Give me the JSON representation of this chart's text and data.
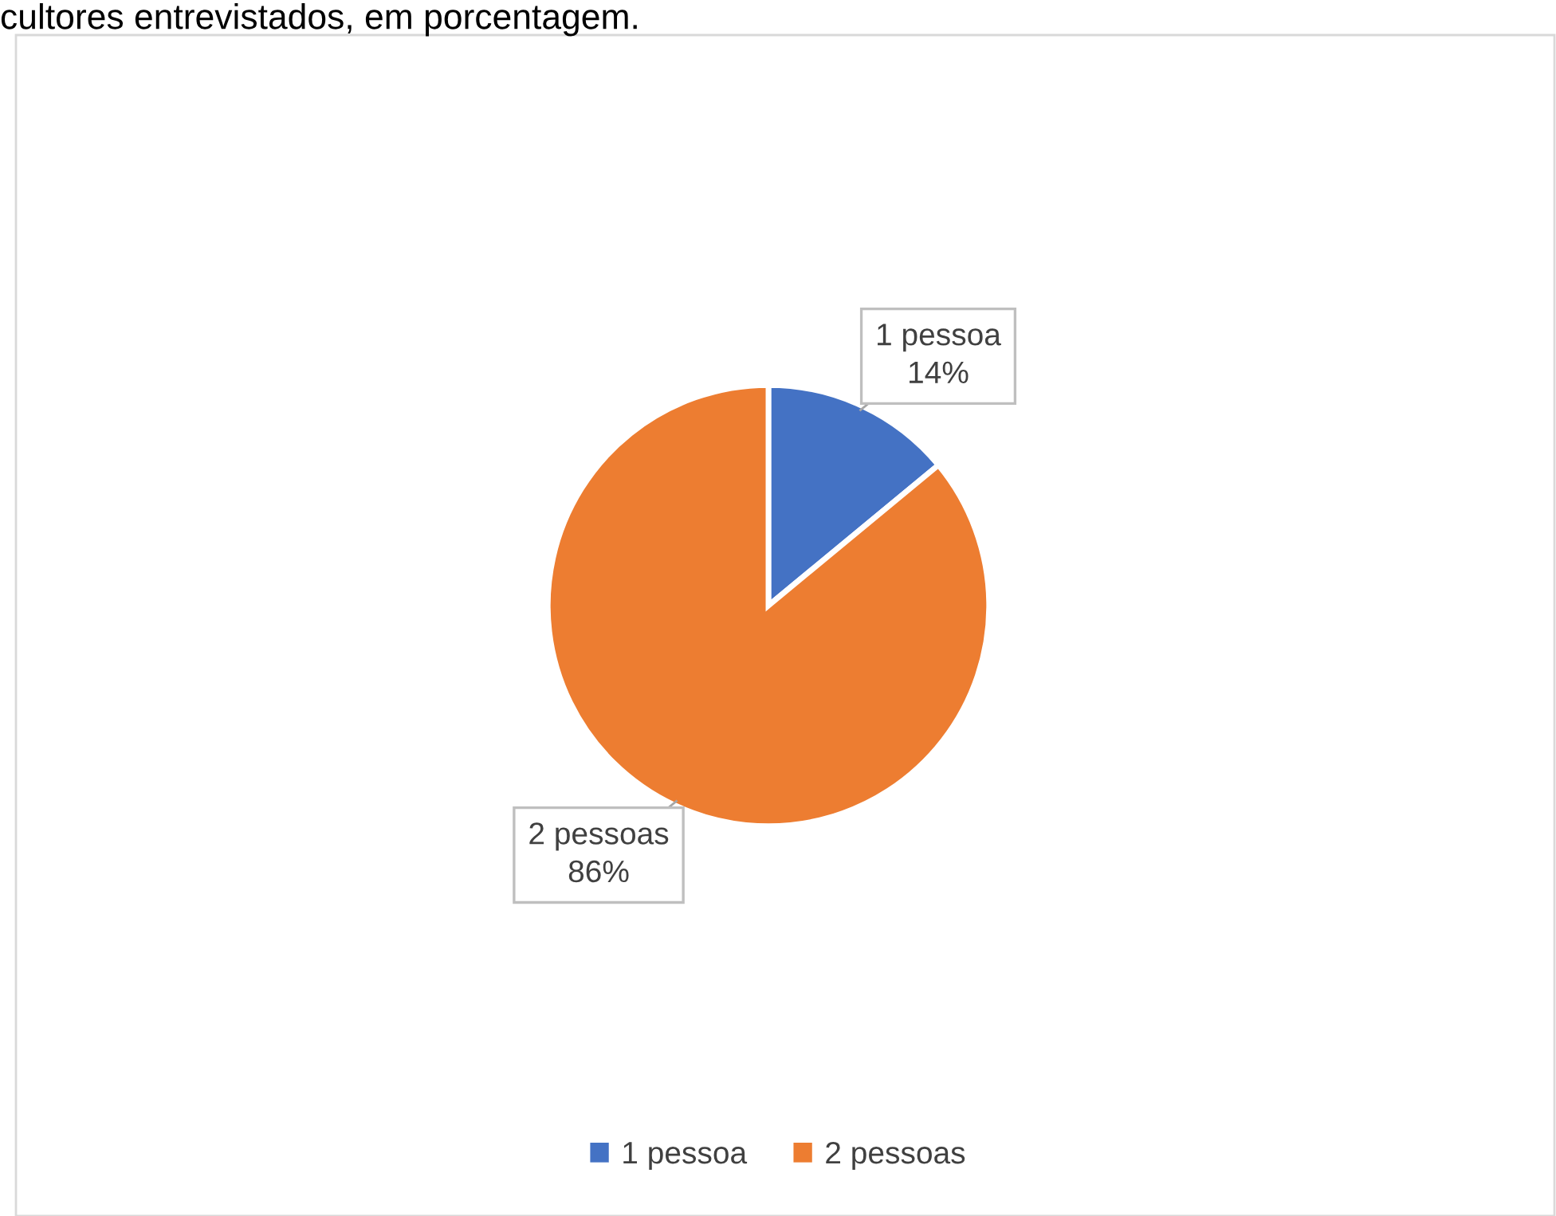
{
  "chart_data": {
    "type": "pie",
    "annotations": [
      "cultores entrevistados, em porcentagem."
    ],
    "categories": [
      "1 pessoa",
      "2 pessoas"
    ],
    "values": [
      14,
      86
    ],
    "colors": [
      "#4472c4",
      "#ed7d31"
    ],
    "value_labels": [
      "14%",
      "86%"
    ],
    "legend": "bottom"
  }
}
